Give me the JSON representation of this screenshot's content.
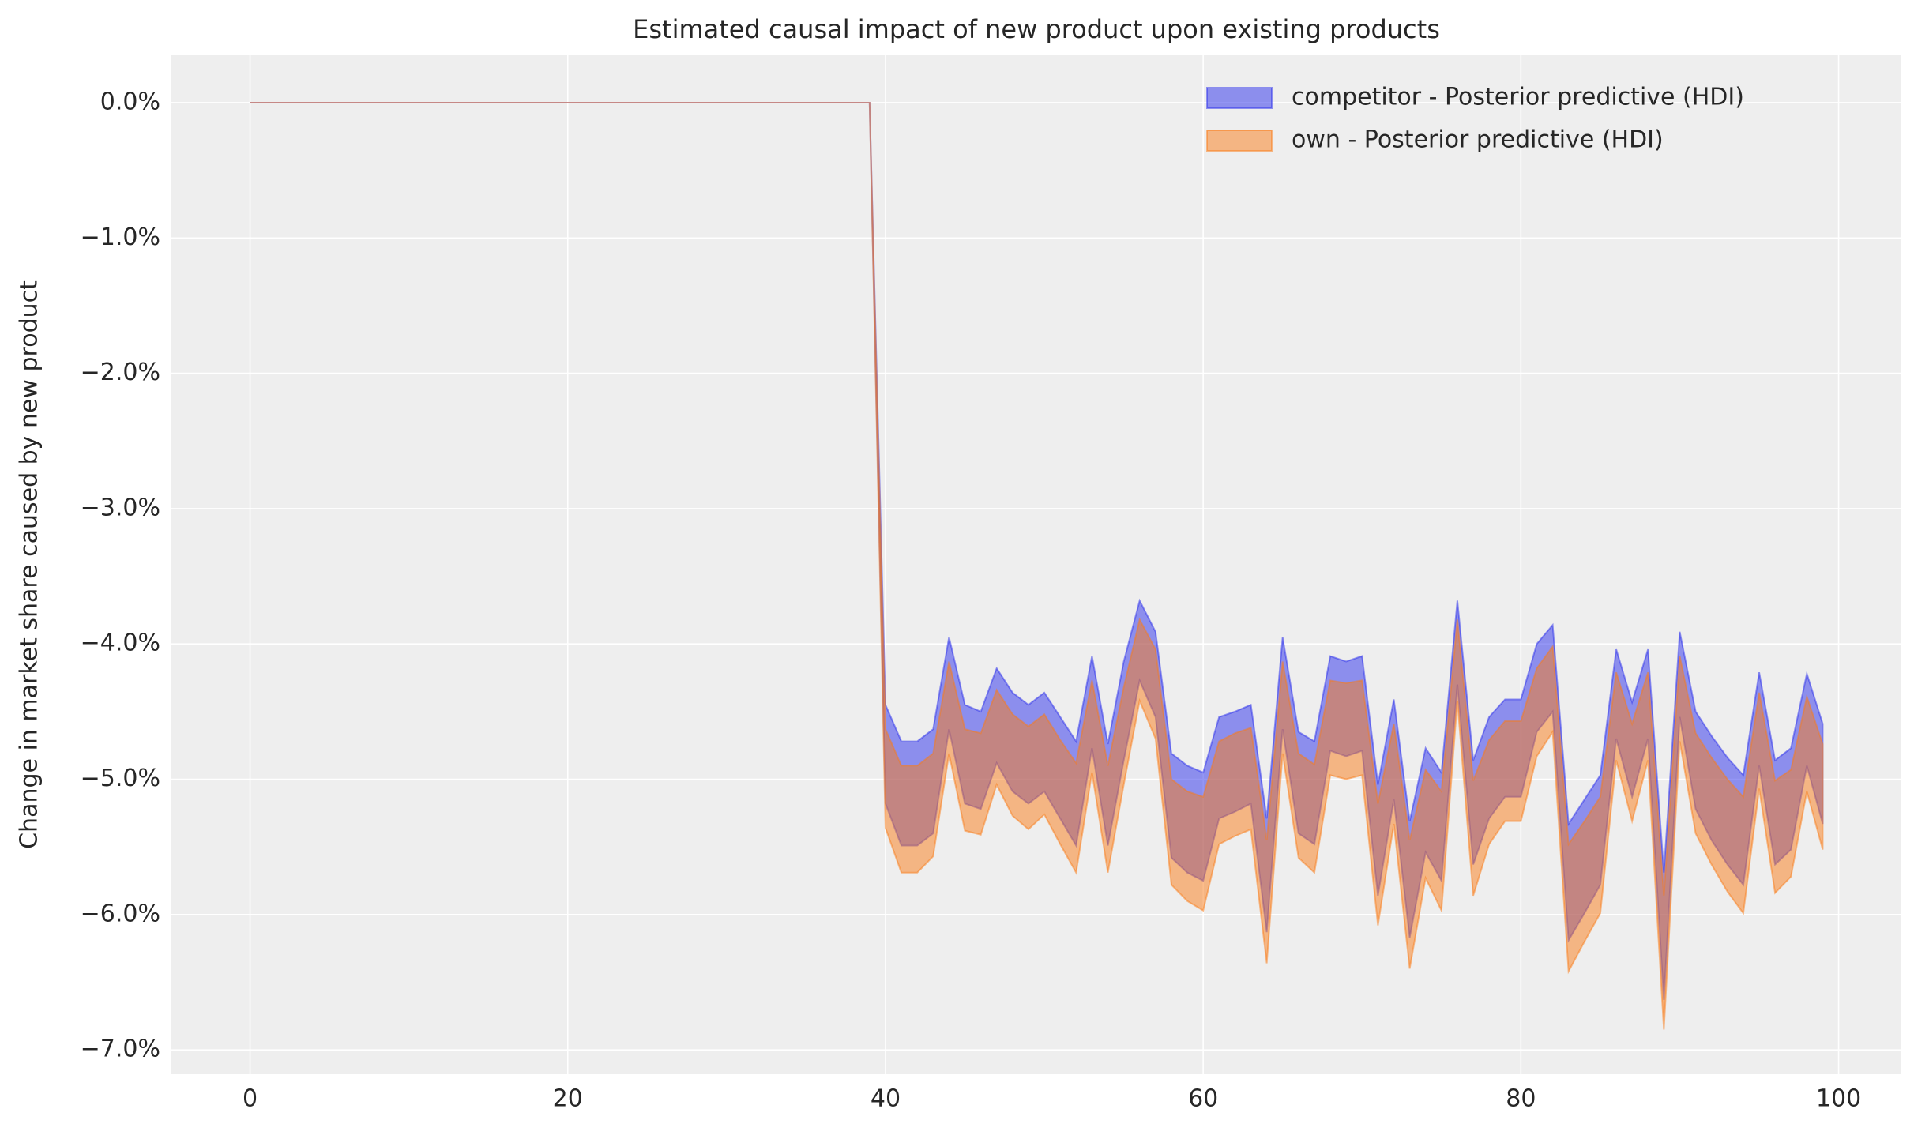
{
  "chart_data": {
    "type": "band",
    "title": "Estimated causal impact of new product upon existing products",
    "y_label": "Change in market share caused by new product",
    "x": [
      0,
      1,
      2,
      3,
      4,
      5,
      6,
      7,
      8,
      9,
      10,
      11,
      12,
      13,
      14,
      15,
      16,
      17,
      18,
      19,
      20,
      21,
      22,
      23,
      24,
      25,
      26,
      27,
      28,
      29,
      30,
      31,
      32,
      33,
      34,
      35,
      36,
      37,
      38,
      39,
      40,
      41,
      42,
      43,
      44,
      45,
      46,
      47,
      48,
      49,
      50,
      51,
      52,
      53,
      54,
      55,
      56,
      57,
      58,
      59,
      60,
      61,
      62,
      63,
      64,
      65,
      66,
      67,
      68,
      69,
      70,
      71,
      72,
      73,
      74,
      75,
      76,
      77,
      78,
      79,
      80,
      81,
      82,
      83,
      84,
      85,
      86,
      87,
      88,
      89,
      90,
      91,
      92,
      93,
      94,
      95,
      96,
      97,
      98,
      99
    ],
    "series": [
      {
        "name": "competitor - Posterior predictive (HDI)",
        "color": "#2a2eec",
        "upper": [
          0,
          0,
          0,
          0,
          0,
          0,
          0,
          0,
          0,
          0,
          0,
          0,
          0,
          0,
          0,
          0,
          0,
          0,
          0,
          0,
          0,
          0,
          0,
          0,
          0,
          0,
          0,
          0,
          0,
          0,
          0,
          0,
          0,
          0,
          0,
          0,
          0,
          0,
          0,
          0,
          -4.45,
          -4.72,
          -4.72,
          -4.63,
          -3.95,
          -4.45,
          -4.5,
          -4.18,
          -4.36,
          -4.45,
          -4.36,
          -4.54,
          -4.72,
          -4.09,
          -4.74,
          -4.13,
          -3.68,
          -3.91,
          -4.81,
          -4.9,
          -4.95,
          -4.54,
          -4.5,
          -4.45,
          -5.29,
          -3.95,
          -4.65,
          -4.72,
          -4.09,
          -4.13,
          -4.09,
          -5.04,
          -4.41,
          -5.31,
          -4.77,
          -4.95,
          -3.68,
          -4.86,
          -4.54,
          -4.41,
          -4.41,
          -4.0,
          -3.86,
          -5.33,
          -5.15,
          -4.97,
          -4.04,
          -4.43,
          -4.04,
          -5.69,
          -3.91,
          -4.5,
          -4.68,
          -4.84,
          -4.97,
          -4.21,
          -4.86,
          -4.77,
          -4.22,
          -4.59
        ],
        "lower": [
          0,
          0,
          0,
          0,
          0,
          0,
          0,
          0,
          0,
          0,
          0,
          0,
          0,
          0,
          0,
          0,
          0,
          0,
          0,
          0,
          0,
          0,
          0,
          0,
          0,
          0,
          0,
          0,
          0,
          0,
          0,
          0,
          0,
          0,
          0,
          0,
          0,
          0,
          0,
          0,
          -5.18,
          -5.49,
          -5.49,
          -5.4,
          -4.63,
          -5.18,
          -5.22,
          -4.88,
          -5.09,
          -5.18,
          -5.09,
          -5.29,
          -5.49,
          -4.77,
          -5.49,
          -4.86,
          -4.27,
          -4.54,
          -5.58,
          -5.69,
          -5.75,
          -5.29,
          -5.24,
          -5.18,
          -6.13,
          -4.63,
          -5.4,
          -5.48,
          -4.79,
          -4.83,
          -4.79,
          -5.86,
          -5.15,
          -6.17,
          -5.54,
          -5.75,
          -4.3,
          -5.63,
          -5.29,
          -5.13,
          -5.13,
          -4.65,
          -4.5,
          -6.19,
          -5.99,
          -5.78,
          -4.7,
          -5.13,
          -4.7,
          -6.63,
          -4.54,
          -5.22,
          -5.45,
          -5.63,
          -5.78,
          -4.9,
          -5.63,
          -5.52,
          -4.9,
          -5.33
        ]
      },
      {
        "name": "own - Posterior predictive (HDI)",
        "color": "#fa7c17",
        "upper": [
          0,
          0,
          0,
          0,
          0,
          0,
          0,
          0,
          0,
          0,
          0,
          0,
          0,
          0,
          0,
          0,
          0,
          0,
          0,
          0,
          0,
          0,
          0,
          0,
          0,
          0,
          0,
          0,
          0,
          0,
          0,
          0,
          0,
          0,
          0,
          0,
          0,
          0,
          0,
          0,
          -4.63,
          -4.9,
          -4.9,
          -4.81,
          -4.13,
          -4.63,
          -4.66,
          -4.34,
          -4.52,
          -4.61,
          -4.52,
          -4.71,
          -4.88,
          -4.27,
          -4.9,
          -4.32,
          -3.82,
          -4.04,
          -5.0,
          -5.09,
          -5.13,
          -4.72,
          -4.66,
          -4.62,
          -5.45,
          -4.13,
          -4.81,
          -4.89,
          -4.27,
          -4.29,
          -4.27,
          -5.18,
          -4.59,
          -5.45,
          -4.93,
          -5.09,
          -3.82,
          -5.01,
          -4.71,
          -4.57,
          -4.57,
          -4.18,
          -4.02,
          -5.48,
          -5.31,
          -5.13,
          -4.21,
          -4.59,
          -4.21,
          -5.86,
          -4.09,
          -4.66,
          -4.84,
          -5.0,
          -5.13,
          -4.36,
          -5.01,
          -4.93,
          -4.39,
          -4.74
        ],
        "lower": [
          0,
          0,
          0,
          0,
          0,
          0,
          0,
          0,
          0,
          0,
          0,
          0,
          0,
          0,
          0,
          0,
          0,
          0,
          0,
          0,
          0,
          0,
          0,
          0,
          0,
          0,
          0,
          0,
          0,
          0,
          0,
          0,
          0,
          0,
          0,
          0,
          0,
          0,
          0,
          0,
          -5.36,
          -5.69,
          -5.69,
          -5.57,
          -4.81,
          -5.38,
          -5.41,
          -5.04,
          -5.27,
          -5.37,
          -5.26,
          -5.48,
          -5.69,
          -4.95,
          -5.69,
          -5.04,
          -4.42,
          -4.7,
          -5.78,
          -5.9,
          -5.97,
          -5.48,
          -5.42,
          -5.37,
          -6.36,
          -4.81,
          -5.58,
          -5.69,
          -4.97,
          -5.0,
          -4.97,
          -6.08,
          -5.33,
          -6.4,
          -5.73,
          -5.97,
          -4.42,
          -5.86,
          -5.48,
          -5.31,
          -5.31,
          -4.83,
          -4.65,
          -6.42,
          -6.2,
          -5.99,
          -4.86,
          -5.31,
          -4.86,
          -6.85,
          -4.72,
          -5.4,
          -5.63,
          -5.83,
          -5.99,
          -5.07,
          -5.84,
          -5.72,
          -5.09,
          -5.52
        ]
      }
    ],
    "xlim": [
      -4.95,
      103.95
    ],
    "ylim": [
      -7.18,
      0.35
    ],
    "xticks": [
      0,
      20,
      40,
      60,
      80,
      100
    ],
    "yticks": [
      {
        "value": 0,
        "label": "0.0%"
      },
      {
        "value": -1,
        "label": "−1.0%"
      },
      {
        "value": -2,
        "label": "−2.0%"
      },
      {
        "value": -3,
        "label": "−3.0%"
      },
      {
        "value": -4,
        "label": "−4.0%"
      },
      {
        "value": -5,
        "label": "−5.0%"
      },
      {
        "value": -6,
        "label": "−6.0%"
      },
      {
        "value": -7,
        "label": "−7.0%"
      }
    ],
    "grid": true,
    "legend": "upper right"
  }
}
